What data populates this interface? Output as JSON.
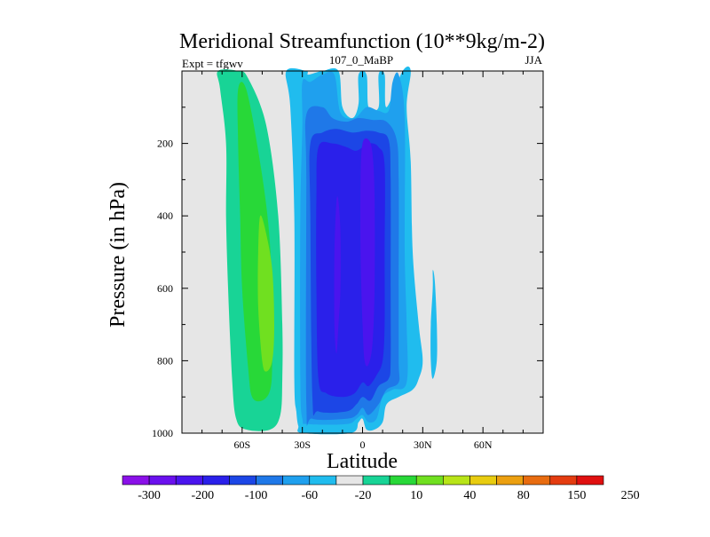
{
  "chart_data": {
    "type": "filled-contour",
    "title": "Meridional Streamfunction (10**9kg/m-2)",
    "left_label": "Expt = tfgwv",
    "center_label": "107_0_MaBP",
    "right_label": "JJA",
    "xlabel": "Latitude",
    "ylabel": "Pressure (in hPa)",
    "xlim": [
      -90,
      90
    ],
    "ylim": [
      1000,
      0
    ],
    "x_ticks": [
      {
        "value": -60,
        "label": "60S"
      },
      {
        "value": -30,
        "label": "30S"
      },
      {
        "value": 0,
        "label": "0"
      },
      {
        "value": 30,
        "label": "30N"
      },
      {
        "value": 60,
        "label": "60N"
      }
    ],
    "y_ticks": [
      {
        "value": 200,
        "label": "200"
      },
      {
        "value": 400,
        "label": "400"
      },
      {
        "value": 600,
        "label": "600"
      },
      {
        "value": 800,
        "label": "800"
      },
      {
        "value": 1000,
        "label": "1000"
      }
    ],
    "background_color": "#e6e6e6",
    "colorbar": {
      "labels": [
        "-300",
        "-200",
        "-100",
        "-60",
        "-20",
        "10",
        "40",
        "80",
        "150",
        "250"
      ],
      "colors": [
        "#8a10e8",
        "#6a10ee",
        "#4a14ee",
        "#2a20ea",
        "#1c46e6",
        "#1f78e8",
        "#1fa0ee",
        "#20bcee",
        "#e6e6e6",
        "#18d496",
        "#28d838",
        "#70e020",
        "#b8e418",
        "#e8cc10",
        "#eca010",
        "#e86c10",
        "#e43c10",
        "#e01010"
      ]
    },
    "regions": [
      {
        "name": "sh-positive-band",
        "level": "10",
        "color": "#18d496",
        "points": [
          [
            -72,
            0
          ],
          [
            -62,
            0
          ],
          [
            -57,
            20
          ],
          [
            -48,
            150
          ],
          [
            -42,
            400
          ],
          [
            -40,
            700
          ],
          [
            -40,
            850
          ],
          [
            -41,
            950
          ],
          [
            -46,
            990
          ],
          [
            -58,
            990
          ],
          [
            -63,
            960
          ],
          [
            -65,
            850
          ],
          [
            -67,
            600
          ],
          [
            -68,
            400
          ],
          [
            -68,
            200
          ],
          [
            -71,
            50
          ]
        ]
      },
      {
        "name": "sh-positive-core",
        "level": "40",
        "color": "#28d838",
        "points": [
          [
            -62,
            50
          ],
          [
            -58,
            50
          ],
          [
            -52,
            220
          ],
          [
            -47,
            420
          ],
          [
            -45,
            620
          ],
          [
            -45,
            800
          ],
          [
            -46,
            880
          ],
          [
            -50,
            910
          ],
          [
            -55,
            900
          ],
          [
            -57,
            820
          ],
          [
            -60,
            600
          ],
          [
            -61,
            400
          ],
          [
            -62,
            200
          ]
        ]
      },
      {
        "name": "sh-positive-max",
        "level": "80",
        "color": "#70e020",
        "points": [
          [
            -51,
            400
          ],
          [
            -48,
            450
          ],
          [
            -45,
            550
          ],
          [
            -44,
            700
          ],
          [
            -45,
            800
          ],
          [
            -48,
            830
          ],
          [
            -50,
            800
          ],
          [
            -52,
            650
          ],
          [
            -52,
            500
          ]
        ]
      },
      {
        "name": "tropical-cell-outer",
        "level": "-20",
        "color": "#20bcee",
        "points": [
          [
            -38,
            0
          ],
          [
            -28,
            0
          ],
          [
            -27,
            10
          ],
          [
            -20,
            0
          ],
          [
            -12,
            0
          ],
          [
            -10,
            100
          ],
          [
            -5,
            130
          ],
          [
            -2,
            90
          ],
          [
            -2,
            10
          ],
          [
            2,
            10
          ],
          [
            3,
            100
          ],
          [
            8,
            100
          ],
          [
            8,
            10
          ],
          [
            11,
            10
          ],
          [
            12,
            100
          ],
          [
            20,
            0
          ],
          [
            24,
            0
          ],
          [
            22,
            100
          ],
          [
            24,
            250
          ],
          [
            25,
            500
          ],
          [
            28,
            700
          ],
          [
            30,
            800
          ],
          [
            28,
            850
          ],
          [
            25,
            880
          ],
          [
            18,
            900
          ],
          [
            12,
            920
          ],
          [
            10,
            970
          ],
          [
            6,
            990
          ],
          [
            2,
            990
          ],
          [
            0,
            960
          ],
          [
            -2,
            970
          ],
          [
            -6,
            1000
          ],
          [
            -30,
            1000
          ],
          [
            -32,
            980
          ],
          [
            -33,
            940
          ],
          [
            -34,
            850
          ],
          [
            -34,
            400
          ],
          [
            -36,
            100
          ]
        ]
      },
      {
        "name": "tropical-cell-20",
        "level": "-20",
        "color": "#1fa0ee",
        "points": [
          [
            -30,
            30
          ],
          [
            -26,
            30
          ],
          [
            -20,
            10
          ],
          [
            -14,
            10
          ],
          [
            -11,
            115
          ],
          [
            -4,
            130
          ],
          [
            2,
            100
          ],
          [
            8,
            110
          ],
          [
            13,
            110
          ],
          [
            15,
            30
          ],
          [
            18,
            10
          ],
          [
            21,
            130
          ],
          [
            21,
            500
          ],
          [
            22,
            700
          ],
          [
            22,
            860
          ],
          [
            15,
            880
          ],
          [
            10,
            900
          ],
          [
            7,
            960
          ],
          [
            3,
            970
          ],
          [
            0,
            950
          ],
          [
            -3,
            960
          ],
          [
            -8,
            975
          ],
          [
            -27,
            975
          ],
          [
            -30,
            960
          ],
          [
            -31,
            850
          ],
          [
            -31,
            400
          ],
          [
            -30,
            150
          ]
        ]
      },
      {
        "name": "tropical-cell-60",
        "level": "-60",
        "color": "#1f78e8",
        "points": [
          [
            -28,
            120
          ],
          [
            -20,
            100
          ],
          [
            -15,
            130
          ],
          [
            -8,
            140
          ],
          [
            -2,
            130
          ],
          [
            5,
            135
          ],
          [
            12,
            140
          ],
          [
            17,
            190
          ],
          [
            18,
            300
          ],
          [
            18,
            600
          ],
          [
            18,
            800
          ],
          [
            18,
            860
          ],
          [
            12,
            880
          ],
          [
            8,
            920
          ],
          [
            3,
            950
          ],
          [
            0,
            930
          ],
          [
            -3,
            950
          ],
          [
            -8,
            960
          ],
          [
            -25,
            960
          ],
          [
            -28,
            920
          ],
          [
            -28,
            300
          ]
        ]
      },
      {
        "name": "tropical-cell-100",
        "level": "-100",
        "color": "#1c46e6",
        "points": [
          [
            -26,
            200
          ],
          [
            -20,
            170
          ],
          [
            -13,
            160
          ],
          [
            -5,
            170
          ],
          [
            2,
            165
          ],
          [
            8,
            170
          ],
          [
            13,
            190
          ],
          [
            14,
            300
          ],
          [
            14,
            600
          ],
          [
            14,
            800
          ],
          [
            13,
            850
          ],
          [
            8,
            870
          ],
          [
            4,
            910
          ],
          [
            0,
            900
          ],
          [
            -3,
            920
          ],
          [
            -8,
            940
          ],
          [
            -22,
            940
          ],
          [
            -25,
            900
          ],
          [
            -26,
            400
          ]
        ]
      },
      {
        "name": "tropical-cell-200",
        "level": "-200",
        "color": "#2a20ea",
        "points": [
          [
            -22,
            210
          ],
          [
            -15,
            200
          ],
          [
            -8,
            210
          ],
          [
            -3,
            220
          ],
          [
            3,
            200
          ],
          [
            8,
            210
          ],
          [
            11,
            260
          ],
          [
            11,
            500
          ],
          [
            11,
            700
          ],
          [
            10,
            800
          ],
          [
            7,
            840
          ],
          [
            3,
            870
          ],
          [
            0,
            860
          ],
          [
            -4,
            890
          ],
          [
            -10,
            900
          ],
          [
            -18,
            890
          ],
          [
            -22,
            850
          ],
          [
            -23,
            600
          ],
          [
            -23,
            350
          ]
        ]
      },
      {
        "name": "tropical-cell-300a",
        "level": "-300",
        "color": "#4a14ee",
        "points": [
          [
            0,
            200
          ],
          [
            3,
            190
          ],
          [
            5,
            230
          ],
          [
            6,
            350
          ],
          [
            6,
            600
          ],
          [
            5,
            750
          ],
          [
            3,
            810
          ],
          [
            1,
            800
          ],
          [
            0,
            700
          ],
          [
            -1,
            500
          ],
          [
            -1,
            300
          ]
        ]
      },
      {
        "name": "tropical-cell-300b",
        "level": "-300",
        "color": "#4a14ee",
        "points": [
          [
            -13,
            360
          ],
          [
            -12,
            360
          ],
          [
            -11,
            450
          ],
          [
            -11,
            600
          ],
          [
            -12,
            700
          ],
          [
            -13,
            780
          ],
          [
            -14,
            700
          ],
          [
            -14,
            500
          ]
        ]
      },
      {
        "name": "tropical-cell-300c",
        "level": "-300",
        "color": "#4a14ee",
        "points": [
          [
            3,
            480
          ],
          [
            4,
            480
          ],
          [
            4,
            620
          ],
          [
            3,
            660
          ],
          [
            2,
            620
          ],
          [
            2,
            540
          ]
        ]
      },
      {
        "name": "nh-small-cell",
        "level": "-20",
        "color": "#20bcee",
        "points": [
          [
            35,
            550
          ],
          [
            36,
            580
          ],
          [
            37,
            700
          ],
          [
            37,
            800
          ],
          [
            35,
            850
          ],
          [
            34,
            800
          ],
          [
            34,
            700
          ],
          [
            35,
            600
          ]
        ]
      }
    ]
  }
}
